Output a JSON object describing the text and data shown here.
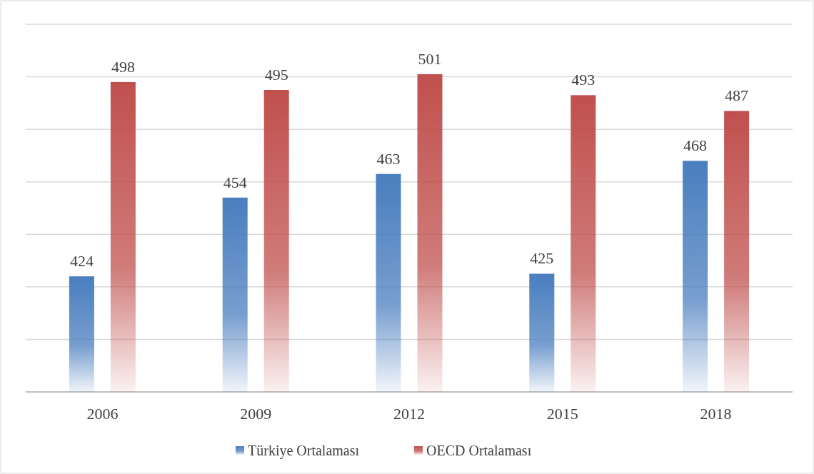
{
  "chart_data": {
    "type": "bar",
    "categories": [
      "2006",
      "2009",
      "2012",
      "2015",
      "2018"
    ],
    "series": [
      {
        "name": "Türkiye Ortalaması",
        "color": "#4a7ebf",
        "values": [
          424,
          454,
          463,
          425,
          468
        ]
      },
      {
        "name": "OECD Ortalaması",
        "color": "#c0504d",
        "values": [
          498,
          495,
          501,
          493,
          487
        ]
      }
    ],
    "ylim": [
      380,
      520
    ],
    "yticks": [
      {
        "value": 380,
        "label": null
      },
      {
        "value": 400,
        "label": null
      },
      {
        "value": 420,
        "label": null
      },
      {
        "value": 440,
        "label": null
      },
      {
        "value": 460,
        "label": null
      },
      {
        "value": 480,
        "label": null
      },
      {
        "value": 500,
        "label": null
      },
      {
        "value": 520,
        "label": null
      }
    ],
    "tick_labels": "x",
    "grid": "y",
    "data_labels": true,
    "legend": "bottom"
  }
}
